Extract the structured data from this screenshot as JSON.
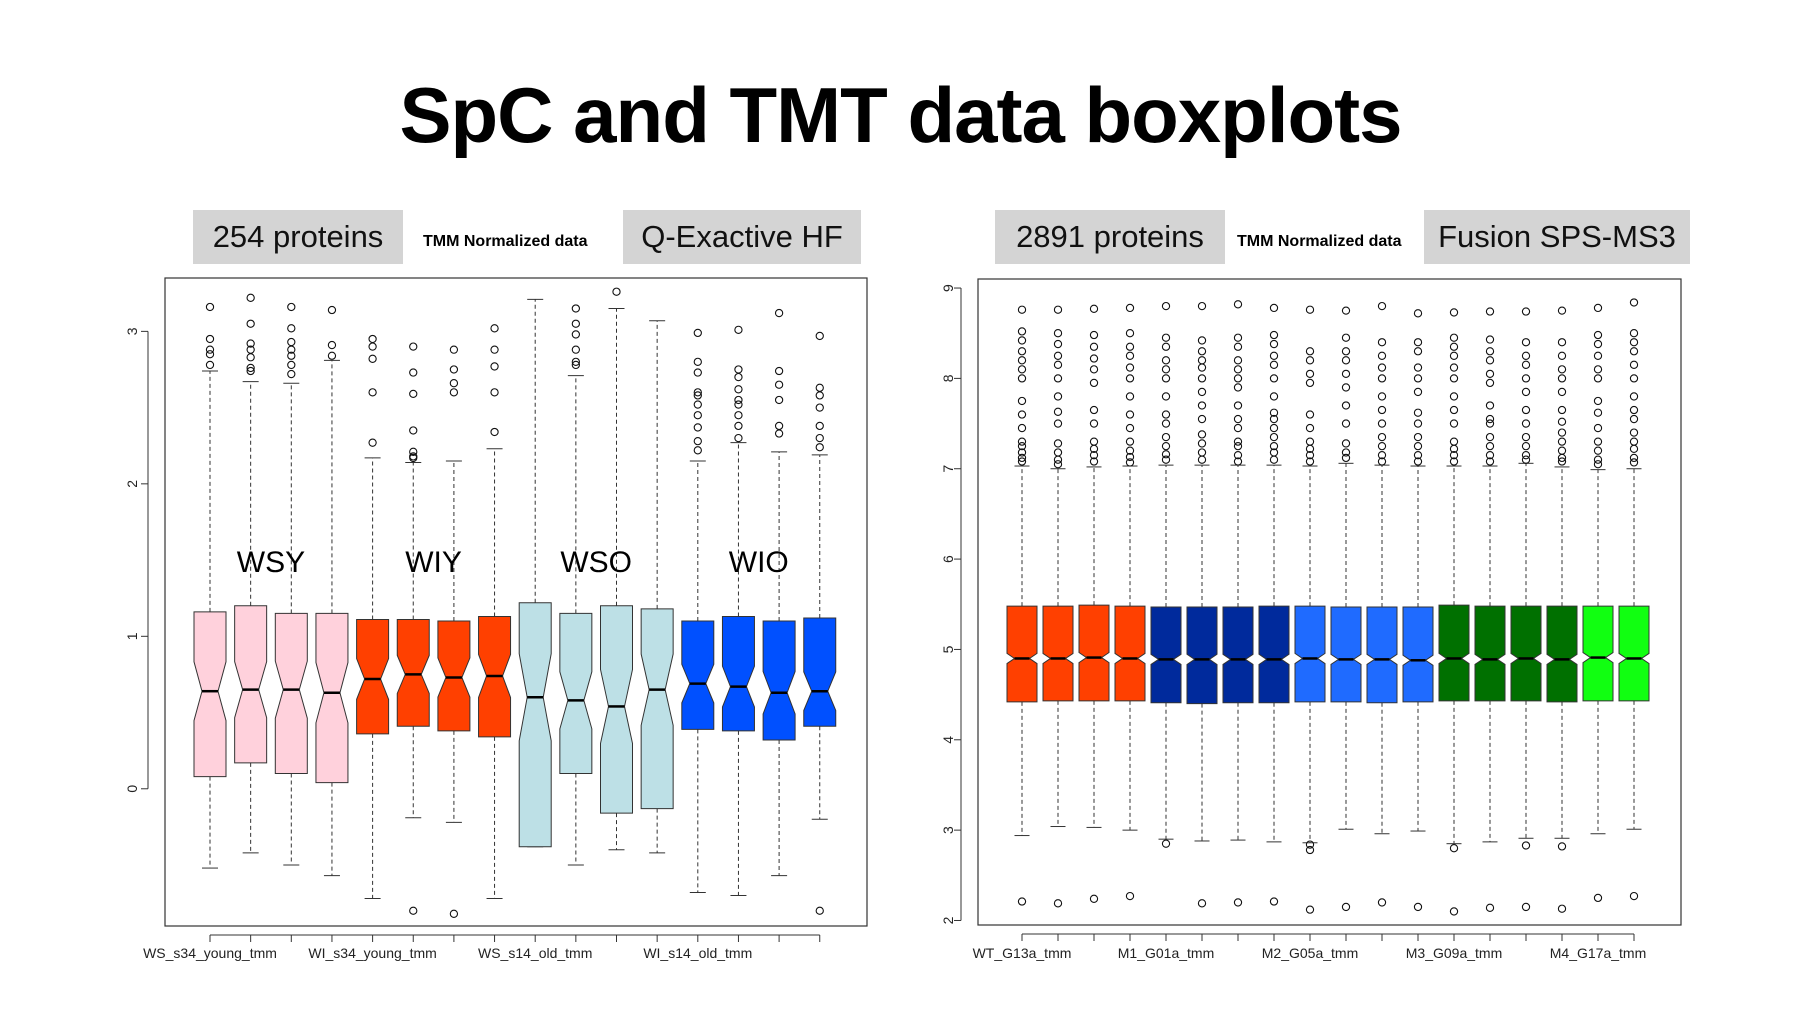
{
  "title": "SpC and TMT data boxplots",
  "panels": [
    {
      "protein_count": "254 proteins",
      "normalization": "TMM Normalized data",
      "instrument": "Q-Exactive HF"
    },
    {
      "protein_count": "2891 proteins",
      "normalization": "TMM Normalized data",
      "instrument": "Fusion SPS-MS3"
    }
  ],
  "colors": {
    "pink": "#ffd1dc",
    "orange_red": "#ff4000",
    "light_blue": "#bde0e6",
    "bright_blue": "#0050ff",
    "navy": "#002a9c",
    "dodger_blue": "#1f6bff",
    "dark_green": "#007000",
    "lime": "#11ff11"
  },
  "chart_data": [
    {
      "type": "boxplot",
      "notched": true,
      "ylim": [
        -0.9,
        3.35
      ],
      "yticks": [
        0,
        1,
        2,
        3
      ],
      "group_labels": [
        "WSY",
        "WIY",
        "WSO",
        "WIO"
      ],
      "xtick_labels": [
        "WS_s34_young_tmm",
        "WI_s34_young_tmm",
        "WS_s14_old_tmm",
        "WI_s14_old_tmm"
      ],
      "xtick_label_positions": [
        1,
        5,
        9,
        13
      ],
      "boxes": [
        {
          "color": "pink",
          "min": -0.52,
          "q1": 0.08,
          "median": 0.64,
          "q3": 1.16,
          "max": 2.74,
          "outliers": [
            2.78,
            2.85,
            2.88,
            2.95,
            3.16
          ]
        },
        {
          "color": "pink",
          "min": -0.42,
          "q1": 0.17,
          "median": 0.65,
          "q3": 1.2,
          "max": 2.67,
          "outliers": [
            2.74,
            2.76,
            2.83,
            2.88,
            2.92,
            3.05,
            3.22
          ]
        },
        {
          "color": "pink",
          "min": -0.5,
          "q1": 0.1,
          "median": 0.65,
          "q3": 1.15,
          "max": 2.66,
          "outliers": [
            2.72,
            2.78,
            2.84,
            2.88,
            2.93,
            3.02,
            3.16
          ]
        },
        {
          "color": "pink",
          "min": -0.57,
          "q1": 0.04,
          "median": 0.63,
          "q3": 1.15,
          "max": 2.81,
          "outliers": [
            2.84,
            2.91,
            3.14
          ]
        },
        {
          "color": "orange_red",
          "min": -0.72,
          "q1": 0.36,
          "median": 0.72,
          "q3": 1.11,
          "max": 2.17,
          "outliers": [
            2.27,
            2.6,
            2.82,
            2.9,
            2.95
          ]
        },
        {
          "color": "orange_red",
          "min": -0.19,
          "q1": 0.41,
          "median": 0.75,
          "q3": 1.11,
          "max": 2.14,
          "outliers": [
            -0.8,
            2.17,
            2.18,
            2.21,
            2.35,
            2.59,
            2.73,
            2.9
          ]
        },
        {
          "color": "orange_red",
          "min": -0.22,
          "q1": 0.38,
          "median": 0.73,
          "q3": 1.1,
          "max": 2.15,
          "outliers": [
            -0.82,
            2.6,
            2.66,
            2.75,
            2.88
          ]
        },
        {
          "color": "orange_red",
          "min": -0.72,
          "q1": 0.34,
          "median": 0.74,
          "q3": 1.13,
          "max": 2.23,
          "outliers": [
            2.34,
            2.6,
            2.77,
            2.88,
            3.02
          ]
        },
        {
          "color": "light_blue",
          "min": -0.38,
          "q1": -0.38,
          "median": 0.6,
          "q3": 1.22,
          "max": 3.21,
          "outliers": []
        },
        {
          "color": "light_blue",
          "min": -0.5,
          "q1": 0.1,
          "median": 0.58,
          "q3": 1.15,
          "max": 2.71,
          "outliers": [
            2.78,
            2.8,
            2.88,
            2.98,
            3.05,
            3.15
          ]
        },
        {
          "color": "light_blue",
          "min": -0.4,
          "q1": -0.16,
          "median": 0.54,
          "q3": 1.2,
          "max": 3.15,
          "outliers": [
            3.26
          ]
        },
        {
          "color": "light_blue",
          "min": -0.42,
          "q1": -0.13,
          "median": 0.65,
          "q3": 1.18,
          "max": 3.07,
          "outliers": []
        },
        {
          "color": "bright_blue",
          "min": -0.68,
          "q1": 0.39,
          "median": 0.69,
          "q3": 1.1,
          "max": 2.15,
          "outliers": [
            2.22,
            2.28,
            2.37,
            2.45,
            2.52,
            2.58,
            2.6,
            2.73,
            2.8,
            2.99
          ]
        },
        {
          "color": "bright_blue",
          "min": -0.7,
          "q1": 0.38,
          "median": 0.67,
          "q3": 1.13,
          "max": 2.27,
          "outliers": [
            2.3,
            2.38,
            2.45,
            2.52,
            2.55,
            2.62,
            2.7,
            2.75,
            3.01
          ]
        },
        {
          "color": "bright_blue",
          "min": -0.57,
          "q1": 0.32,
          "median": 0.63,
          "q3": 1.1,
          "max": 2.21,
          "outliers": [
            2.33,
            2.38,
            2.55,
            2.65,
            2.74,
            3.12
          ]
        },
        {
          "color": "bright_blue",
          "min": -0.2,
          "q1": 0.41,
          "median": 0.64,
          "q3": 1.12,
          "max": 2.19,
          "outliers": [
            -0.8,
            2.24,
            2.3,
            2.38,
            2.5,
            2.58,
            2.63,
            2.97
          ]
        }
      ]
    },
    {
      "type": "boxplot",
      "notched": true,
      "ylim": [
        1.95,
        9.1
      ],
      "yticks": [
        2,
        3,
        4,
        5,
        6,
        7,
        8,
        9
      ],
      "xtick_labels": [
        "WT_G13a_tmm",
        "M1_G01a_tmm",
        "M2_G05a_tmm",
        "M3_G09a_tmm",
        "M4_G17a_tmm"
      ],
      "xtick_label_positions": [
        1,
        5,
        9,
        13,
        17
      ],
      "boxes": [
        {
          "color": "orange_red",
          "min": 2.94,
          "q1": 4.42,
          "median": 4.9,
          "q3": 5.48,
          "max": 7.03,
          "outliers": [
            2.21,
            7.08,
            7.12,
            7.18,
            7.25,
            7.3,
            7.45,
            7.6,
            7.75,
            8.0,
            8.1,
            8.2,
            8.3,
            8.42,
            8.52,
            8.76
          ]
        },
        {
          "color": "orange_red",
          "min": 3.04,
          "q1": 4.43,
          "median": 4.9,
          "q3": 5.48,
          "max": 7.0,
          "outliers": [
            2.19,
            7.05,
            7.1,
            7.18,
            7.28,
            7.5,
            7.63,
            7.8,
            8.0,
            8.15,
            8.25,
            8.38,
            8.5,
            8.76
          ]
        },
        {
          "color": "orange_red",
          "min": 3.03,
          "q1": 4.43,
          "median": 4.91,
          "q3": 5.49,
          "max": 7.02,
          "outliers": [
            2.24,
            7.08,
            7.15,
            7.22,
            7.3,
            7.5,
            7.65,
            7.95,
            8.1,
            8.22,
            8.35,
            8.48,
            8.77
          ]
        },
        {
          "color": "orange_red",
          "min": 3.0,
          "q1": 4.43,
          "median": 4.9,
          "q3": 5.48,
          "max": 7.03,
          "outliers": [
            2.27,
            7.07,
            7.13,
            7.2,
            7.3,
            7.45,
            7.6,
            7.8,
            8.0,
            8.12,
            8.25,
            8.35,
            8.5,
            8.78
          ]
        },
        {
          "color": "navy",
          "min": 2.9,
          "q1": 4.41,
          "median": 4.89,
          "q3": 5.47,
          "max": 7.04,
          "outliers": [
            2.85,
            7.1,
            7.16,
            7.25,
            7.35,
            7.5,
            7.6,
            7.8,
            8.0,
            8.1,
            8.2,
            8.35,
            8.45,
            8.8
          ]
        },
        {
          "color": "navy",
          "min": 2.88,
          "q1": 4.4,
          "median": 4.89,
          "q3": 5.47,
          "max": 7.04,
          "outliers": [
            2.19,
            7.1,
            7.18,
            7.28,
            7.38,
            7.55,
            7.7,
            7.85,
            8.0,
            8.12,
            8.2,
            8.3,
            8.42,
            8.8
          ]
        },
        {
          "color": "navy",
          "min": 2.89,
          "q1": 4.41,
          "median": 4.89,
          "q3": 5.47,
          "max": 7.04,
          "outliers": [
            2.2,
            7.08,
            7.15,
            7.25,
            7.3,
            7.45,
            7.55,
            7.7,
            7.9,
            8.0,
            8.1,
            8.2,
            8.35,
            8.45,
            8.82
          ]
        },
        {
          "color": "navy",
          "min": 2.87,
          "q1": 4.41,
          "median": 4.89,
          "q3": 5.48,
          "max": 7.04,
          "outliers": [
            2.21,
            7.1,
            7.18,
            7.25,
            7.35,
            7.45,
            7.55,
            7.62,
            7.8,
            8.0,
            8.15,
            8.25,
            8.38,
            8.48,
            8.78
          ]
        },
        {
          "color": "dodger_blue",
          "min": 2.86,
          "q1": 4.42,
          "median": 4.9,
          "q3": 5.48,
          "max": 7.03,
          "outliers": [
            2.12,
            2.78,
            2.84,
            7.08,
            7.15,
            7.22,
            7.3,
            7.45,
            7.6,
            7.95,
            8.05,
            8.2,
            8.3,
            8.76
          ]
        },
        {
          "color": "dodger_blue",
          "min": 3.01,
          "q1": 4.42,
          "median": 4.89,
          "q3": 5.47,
          "max": 7.06,
          "outliers": [
            2.15,
            7.12,
            7.18,
            7.28,
            7.5,
            7.7,
            7.9,
            8.05,
            8.2,
            8.3,
            8.45,
            8.75
          ]
        },
        {
          "color": "dodger_blue",
          "min": 2.96,
          "q1": 4.41,
          "median": 4.89,
          "q3": 5.47,
          "max": 7.04,
          "outliers": [
            2.2,
            7.08,
            7.15,
            7.25,
            7.35,
            7.5,
            7.65,
            7.8,
            8.0,
            8.12,
            8.25,
            8.4,
            8.8
          ]
        },
        {
          "color": "dodger_blue",
          "min": 2.99,
          "q1": 4.42,
          "median": 4.88,
          "q3": 5.47,
          "max": 7.03,
          "outliers": [
            2.15,
            7.08,
            7.15,
            7.25,
            7.35,
            7.5,
            7.62,
            7.85,
            8.0,
            8.12,
            8.3,
            8.4,
            8.72
          ]
        },
        {
          "color": "dark_green",
          "min": 2.85,
          "q1": 4.43,
          "median": 4.9,
          "q3": 5.49,
          "max": 7.03,
          "outliers": [
            2.1,
            2.8,
            7.08,
            7.15,
            7.22,
            7.3,
            7.5,
            7.65,
            7.8,
            8.0,
            8.12,
            8.25,
            8.35,
            8.45,
            8.73
          ]
        },
        {
          "color": "dark_green",
          "min": 2.87,
          "q1": 4.43,
          "median": 4.89,
          "q3": 5.48,
          "max": 7.03,
          "outliers": [
            2.14,
            7.08,
            7.15,
            7.25,
            7.35,
            7.5,
            7.55,
            7.7,
            7.95,
            8.05,
            8.2,
            8.3,
            8.43,
            8.74
          ]
        },
        {
          "color": "dark_green",
          "min": 2.91,
          "q1": 4.43,
          "median": 4.9,
          "q3": 5.48,
          "max": 7.06,
          "outliers": [
            2.15,
            2.83,
            7.1,
            7.15,
            7.25,
            7.35,
            7.5,
            7.65,
            7.85,
            8.0,
            8.15,
            8.25,
            8.4,
            8.74
          ]
        },
        {
          "color": "dark_green",
          "min": 2.91,
          "q1": 4.42,
          "median": 4.89,
          "q3": 5.48,
          "max": 7.02,
          "outliers": [
            2.13,
            2.82,
            7.08,
            7.12,
            7.2,
            7.3,
            7.4,
            7.52,
            7.65,
            7.85,
            8.0,
            8.1,
            8.25,
            8.4,
            8.75
          ]
        },
        {
          "color": "lime",
          "min": 2.96,
          "q1": 4.43,
          "median": 4.91,
          "q3": 5.48,
          "max": 6.99,
          "outliers": [
            2.25,
            7.05,
            7.1,
            7.2,
            7.3,
            7.45,
            7.62,
            7.75,
            8.0,
            8.1,
            8.25,
            8.38,
            8.48,
            8.78
          ]
        },
        {
          "color": "lime",
          "min": 3.01,
          "q1": 4.43,
          "median": 4.9,
          "q3": 5.48,
          "max": 7.0,
          "outliers": [
            2.27,
            7.07,
            7.12,
            7.22,
            7.3,
            7.4,
            7.55,
            7.65,
            7.8,
            8.0,
            8.15,
            8.3,
            8.4,
            8.5,
            8.84
          ]
        }
      ]
    }
  ]
}
